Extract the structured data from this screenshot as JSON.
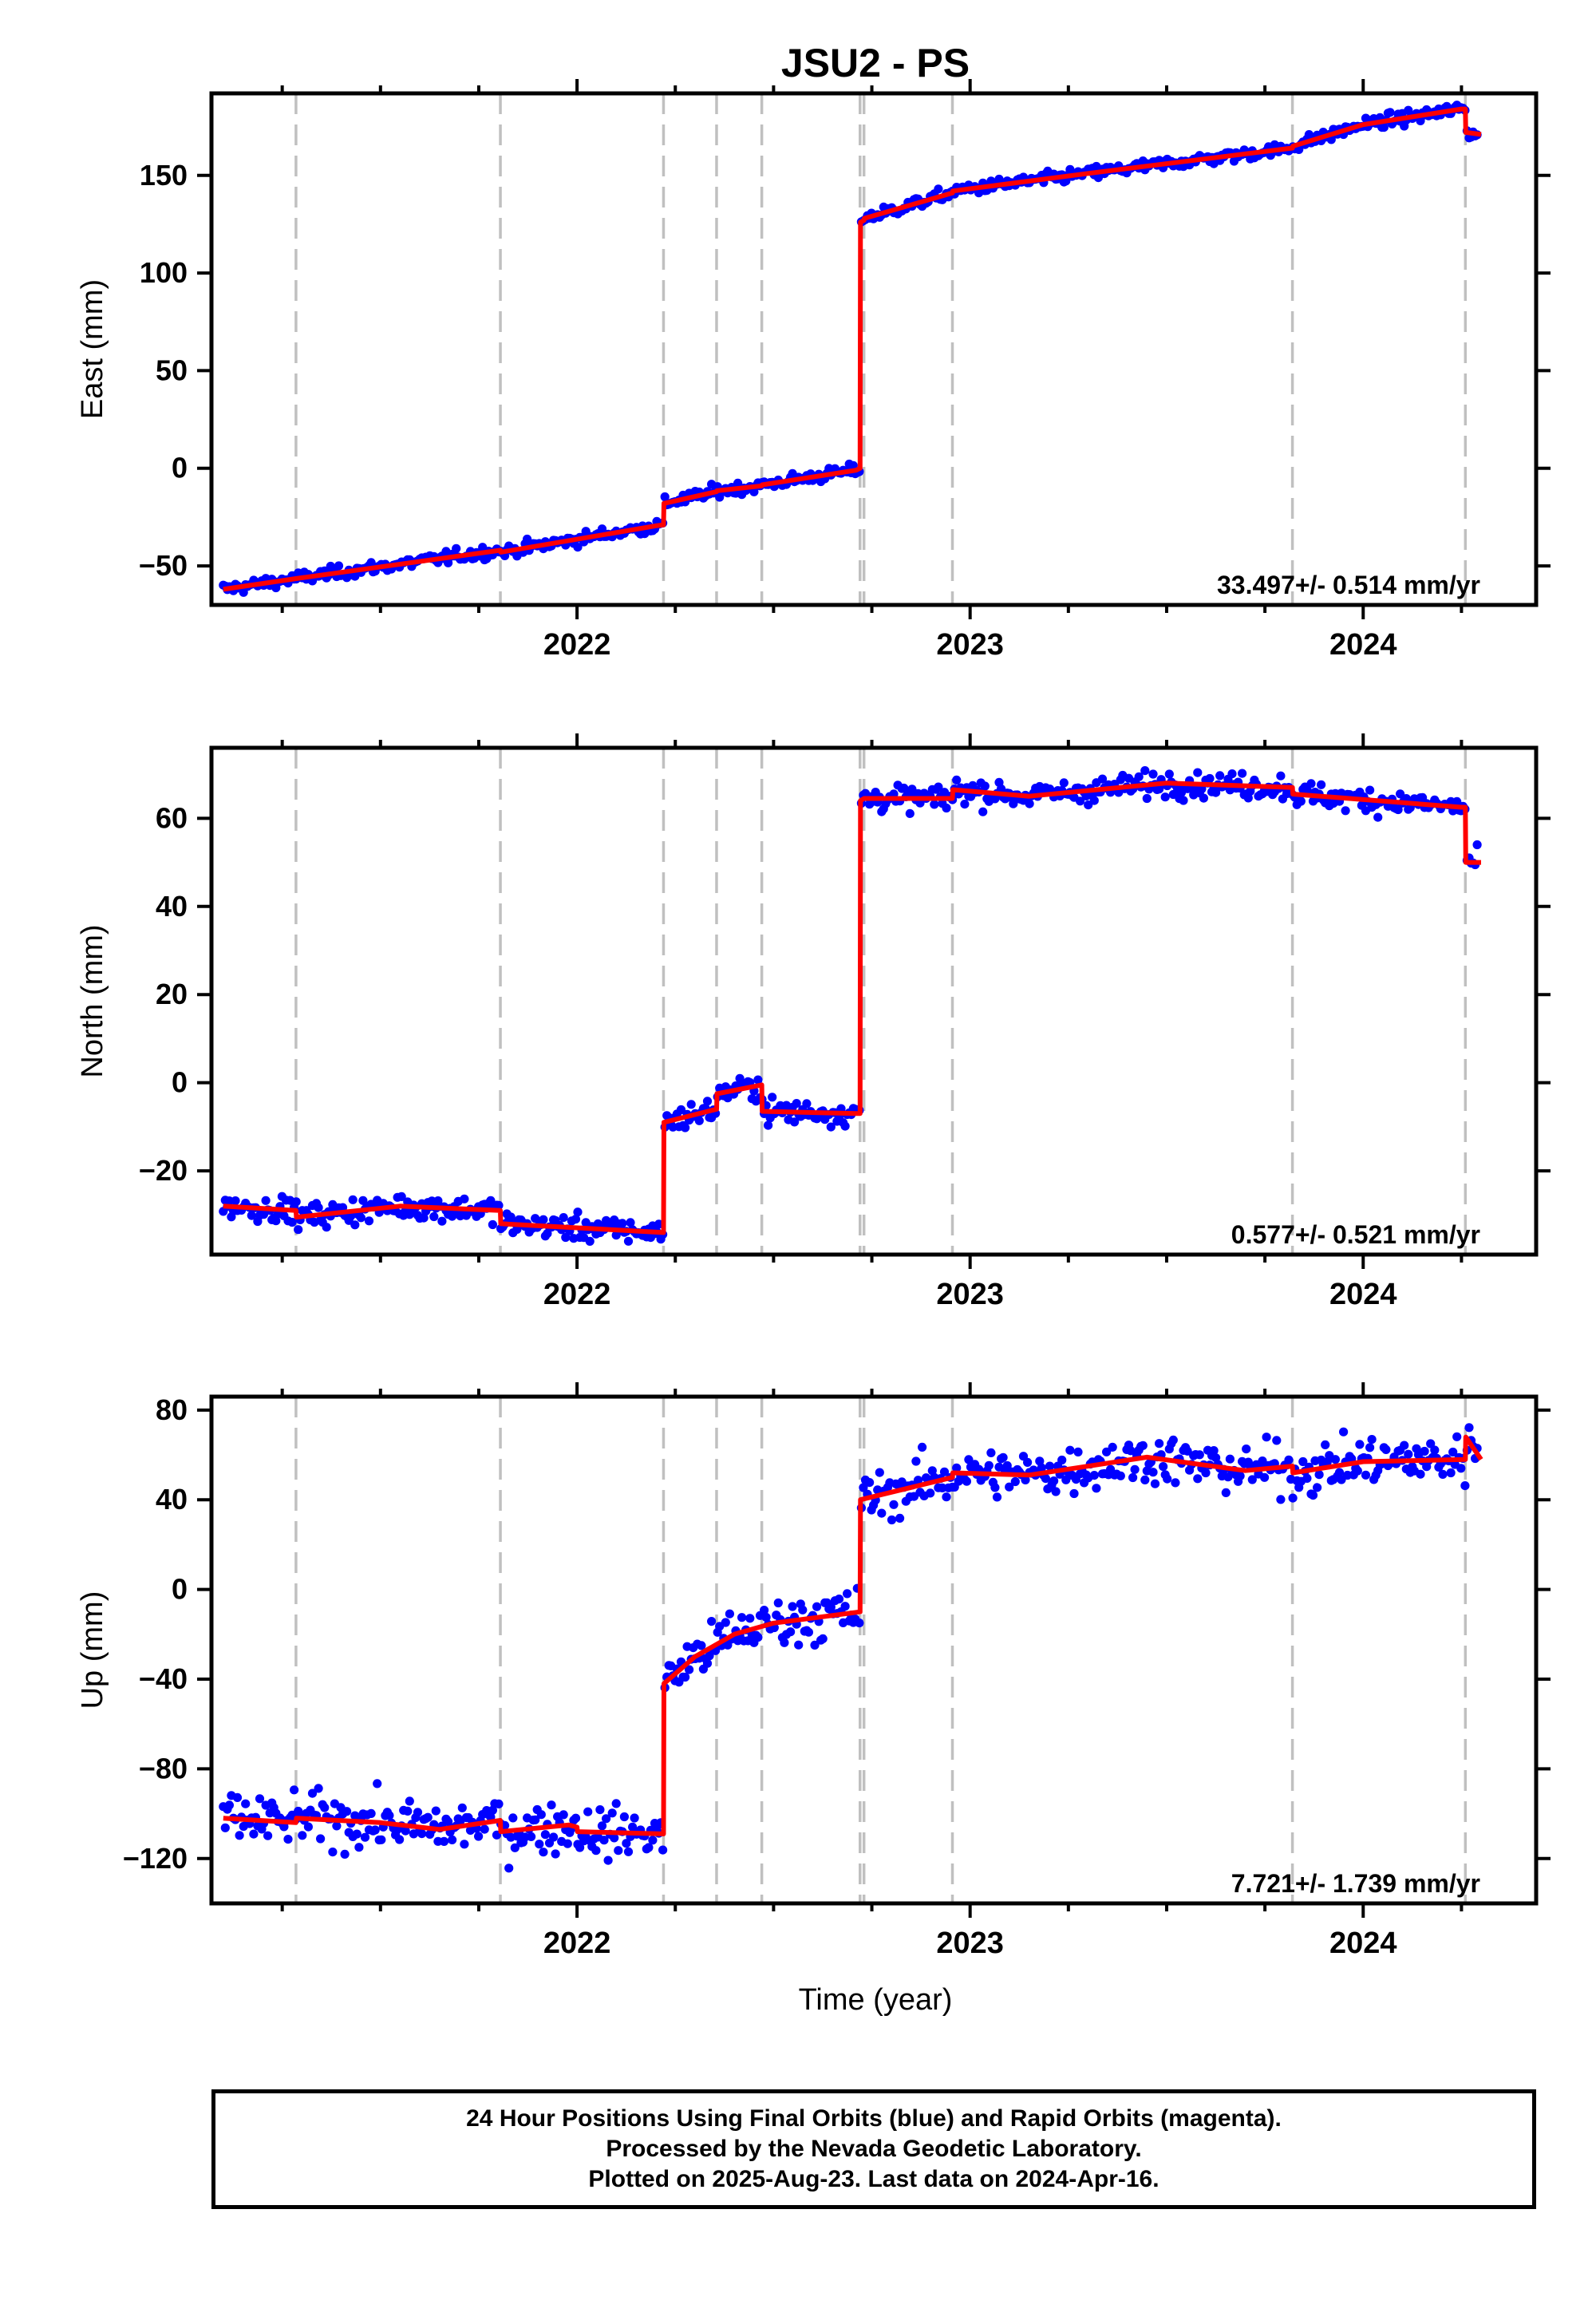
{
  "title": "JSU2 - PS",
  "colors": {
    "final_orbits": "#0000ff",
    "model": "#ff0000",
    "events": "#c0c0c0",
    "frame": "#000000"
  },
  "x_axis": {
    "label": "Time (year)",
    "range": [
      2021.07,
      2024.44
    ],
    "ticks": [
      2022,
      2023,
      2024
    ],
    "tick_labels": [
      "2022",
      "2023",
      "2024"
    ]
  },
  "event_epochs": [
    2021.285,
    2021.805,
    2022.22,
    2022.355,
    2022.47,
    2022.72,
    2022.73,
    2022.955,
    2023.82,
    2024.26
  ],
  "chart_data": [
    {
      "type": "scatter",
      "component": "east",
      "ylabel": "East (mm)",
      "ylim": [
        -70,
        192
      ],
      "yticks": [
        -50,
        0,
        50,
        100,
        150
      ],
      "ytick_labels": [
        "−50",
        "0",
        "50",
        "100",
        "150"
      ],
      "rate_label": "33.497+/- 0.514 mm/yr",
      "noise_mm": 1.6,
      "model": [
        [
          2021.1,
          -62
        ],
        [
          2021.285,
          -56.5
        ],
        [
          2021.805,
          -42
        ],
        [
          2021.806,
          -43
        ],
        [
          2022.2,
          -29.5
        ],
        [
          2022.22,
          -29
        ],
        [
          2022.221,
          -18
        ],
        [
          2022.355,
          -12
        ],
        [
          2022.356,
          -11.5
        ],
        [
          2022.47,
          -9
        ],
        [
          2022.471,
          -8.5
        ],
        [
          2022.71,
          -1
        ],
        [
          2022.72,
          0
        ],
        [
          2022.721,
          126
        ],
        [
          2022.73,
          127
        ],
        [
          2022.731,
          128
        ],
        [
          2022.955,
          141
        ],
        [
          2022.956,
          142
        ],
        [
          2023.3,
          151
        ],
        [
          2023.7,
          161
        ],
        [
          2023.82,
          164
        ],
        [
          2023.821,
          165
        ],
        [
          2024.0,
          176
        ],
        [
          2024.25,
          184
        ],
        [
          2024.26,
          184
        ],
        [
          2024.261,
          172
        ],
        [
          2024.3,
          171
        ]
      ]
    },
    {
      "type": "scatter",
      "component": "north",
      "ylabel": "North (mm)",
      "ylim": [
        -39,
        76
      ],
      "yticks": [
        -20,
        0,
        20,
        40,
        60
      ],
      "ytick_labels": [
        "−20",
        "0",
        "20",
        "40",
        "60"
      ],
      "rate_label": "0.577+/- 0.521 mm/yr",
      "noise_mm": 1.4,
      "model": [
        [
          2021.1,
          -28
        ],
        [
          2021.285,
          -29
        ],
        [
          2021.286,
          -30.5
        ],
        [
          2021.55,
          -28
        ],
        [
          2021.805,
          -29
        ],
        [
          2021.806,
          -32
        ],
        [
          2022.22,
          -34
        ],
        [
          2022.221,
          -9
        ],
        [
          2022.355,
          -6
        ],
        [
          2022.356,
          -2.5
        ],
        [
          2022.47,
          -0.5
        ],
        [
          2022.471,
          -6.5
        ],
        [
          2022.71,
          -7
        ],
        [
          2022.72,
          -7
        ],
        [
          2022.721,
          64
        ],
        [
          2022.73,
          64.5
        ],
        [
          2022.955,
          64.5
        ],
        [
          2022.956,
          66.5
        ],
        [
          2023.15,
          65
        ],
        [
          2023.5,
          68
        ],
        [
          2023.82,
          67
        ],
        [
          2023.821,
          65.5
        ],
        [
          2024.25,
          62.5
        ],
        [
          2024.26,
          62.5
        ],
        [
          2024.261,
          50
        ],
        [
          2024.3,
          50
        ]
      ]
    },
    {
      "type": "scatter",
      "component": "up",
      "ylabel": "Up (mm)",
      "ylim": [
        -140,
        86
      ],
      "yticks": [
        -120,
        -80,
        -40,
        0,
        40,
        80
      ],
      "ytick_labels": [
        "−120",
        "−80",
        "−40",
        "0",
        "40",
        "80"
      ],
      "rate_label": "7.721+/- 1.739 mm/yr",
      "noise_mm": 5.5,
      "model": [
        [
          2021.1,
          -102
        ],
        [
          2021.285,
          -104
        ],
        [
          2021.286,
          -102
        ],
        [
          2021.5,
          -104
        ],
        [
          2021.65,
          -107
        ],
        [
          2021.805,
          -103
        ],
        [
          2021.806,
          -108
        ],
        [
          2021.98,
          -105
        ],
        [
          2022.0,
          -106
        ],
        [
          2022.001,
          -108
        ],
        [
          2022.22,
          -109
        ],
        [
          2022.221,
          -42
        ],
        [
          2022.3,
          -30
        ],
        [
          2022.4,
          -20
        ],
        [
          2022.5,
          -15
        ],
        [
          2022.72,
          -10
        ],
        [
          2022.721,
          40
        ],
        [
          2022.955,
          50
        ],
        [
          2022.956,
          52
        ],
        [
          2023.15,
          51
        ],
        [
          2023.45,
          59
        ],
        [
          2023.7,
          53
        ],
        [
          2023.82,
          55
        ],
        [
          2023.821,
          52
        ],
        [
          2024.0,
          57
        ],
        [
          2024.26,
          58
        ],
        [
          2024.261,
          68
        ],
        [
          2024.3,
          58
        ]
      ]
    }
  ],
  "footer": {
    "line1": "24 Hour Positions Using Final Orbits (blue) and Rapid Orbits (magenta).",
    "line2": "Processed by the Nevada Geodetic Laboratory.",
    "line3": "Plotted on 2025-Aug-23. Last data on 2024-Apr-16."
  }
}
